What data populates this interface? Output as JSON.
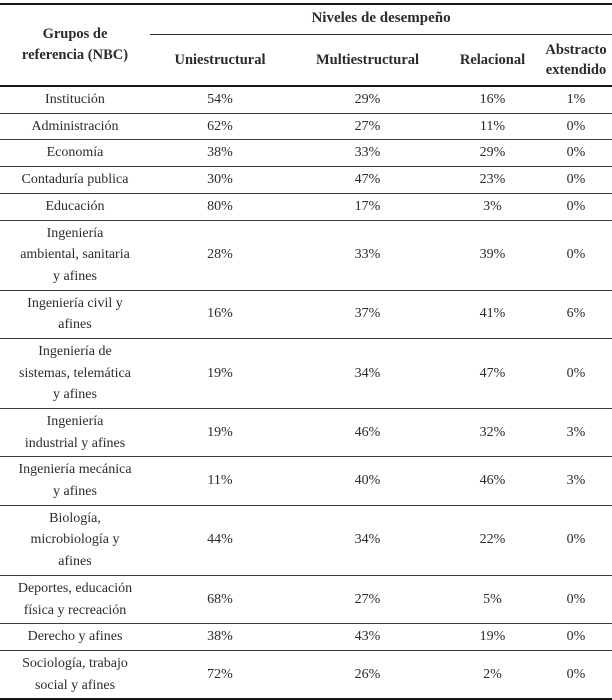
{
  "table": {
    "corner_header": "Grupos de\nreferencia (NBC)",
    "span_header": "Niveles de desempeño",
    "columns": [
      "Uniestructural",
      "Multiestructural",
      "Relacional",
      "Abstracto\nextendido"
    ],
    "rows": [
      {
        "label": "Institución",
        "values": [
          "54%",
          "29%",
          "16%",
          "1%"
        ]
      },
      {
        "label": "Administración",
        "values": [
          "62%",
          "27%",
          "11%",
          "0%"
        ]
      },
      {
        "label": "Economía",
        "values": [
          "38%",
          "33%",
          "29%",
          "0%"
        ]
      },
      {
        "label": "Contaduría publica",
        "values": [
          "30%",
          "47%",
          "23%",
          "0%"
        ]
      },
      {
        "label": "Educación",
        "values": [
          "80%",
          "17%",
          "3%",
          "0%"
        ]
      },
      {
        "label": "Ingeniería\nambiental, sanitaria\ny afines",
        "values": [
          "28%",
          "33%",
          "39%",
          "0%"
        ]
      },
      {
        "label": "Ingeniería civil y\nafines",
        "values": [
          "16%",
          "37%",
          "41%",
          "6%"
        ]
      },
      {
        "label": "Ingeniería de\nsistemas, telemática\ny afines",
        "values": [
          "19%",
          "34%",
          "47%",
          "0%"
        ]
      },
      {
        "label": "Ingeniería\nindustrial y afines",
        "values": [
          "19%",
          "46%",
          "32%",
          "3%"
        ]
      },
      {
        "label": "Ingeniería mecánica\ny afines",
        "values": [
          "11%",
          "40%",
          "46%",
          "3%"
        ]
      },
      {
        "label": "Biología,\nmicrobiología y\nafines",
        "values": [
          "44%",
          "34%",
          "22%",
          "0%"
        ]
      },
      {
        "label": "Deportes, educación\nfísica y recreación",
        "values": [
          "68%",
          "27%",
          "5%",
          "0%"
        ]
      },
      {
        "label": "Derecho y afines",
        "values": [
          "38%",
          "43%",
          "19%",
          "0%"
        ]
      },
      {
        "label": "Sociología, trabajo\nsocial y afines",
        "values": [
          "72%",
          "26%",
          "2%",
          "0%"
        ]
      }
    ]
  }
}
